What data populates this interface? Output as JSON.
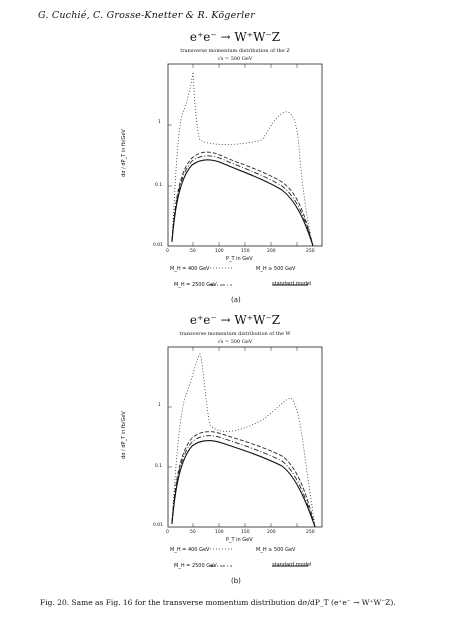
{
  "header": {
    "authors": "G. Cuchié, C. Grosse-Knetter & R. Kögerler"
  },
  "panels": [
    {
      "id": "a",
      "title": "e⁺e⁻ → W⁺W⁻Z",
      "subtitle": "transverse momentum distribution of the Z",
      "energy": "√s = 500 GeV",
      "ylabel": "dσ / dP_T in fb/GeV",
      "xlabel": "P_T in GeV",
      "xticks": [
        "0",
        "50",
        "100",
        "150",
        "200",
        "250"
      ],
      "yticks": [
        "1",
        "0.1",
        "0.01"
      ],
      "note_left": "M_H = 400 GeV",
      "note_right": "M_H ≥ 500 GeV",
      "legend_left": "M_H = 2500 GeV",
      "legend_right": "standard model",
      "letter": "(a)"
    },
    {
      "id": "b",
      "title": "e⁺e⁻ → W⁺W⁻Z",
      "subtitle": "transverse momentum distribution of the W",
      "energy": "√s = 500 GeV",
      "ylabel": "dσ / dP_T in fb/GeV",
      "xlabel": "P_T in GeV",
      "xticks": [
        "0",
        "50",
        "100",
        "150",
        "200",
        "250"
      ],
      "yticks": [
        "1",
        "0.1",
        "0.01"
      ],
      "note_left": "M_H = 400 GeV",
      "note_right": "M_H ≥ 500 GeV",
      "legend_left": "M_H = 2500 GeV",
      "legend_right": "standard model",
      "letter": "(b)"
    }
  ],
  "caption": "Fig. 20. Same as Fig. 16 for the transverse momentum distribution dσ/dP_T (e⁺e⁻ → W⁺W⁻Z)."
}
